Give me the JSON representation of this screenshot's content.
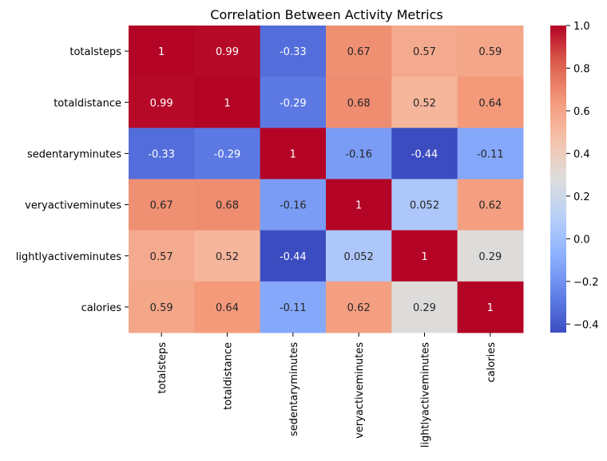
{
  "chart_data": {
    "type": "heatmap",
    "title": "Correlation Between Activity Metrics",
    "xlabel": "",
    "ylabel": "",
    "rows": [
      "totalsteps",
      "totaldistance",
      "sedentaryminutes",
      "veryactiveminutes",
      "lightlyactiveminutes",
      "calories"
    ],
    "columns": [
      "totalsteps",
      "totaldistance",
      "sedentaryminutes",
      "veryactiveminutes",
      "lightlyactiveminutes",
      "calories"
    ],
    "values": [
      [
        1,
        0.99,
        -0.33,
        0.67,
        0.57,
        0.59
      ],
      [
        0.99,
        1,
        -0.29,
        0.68,
        0.52,
        0.64
      ],
      [
        -0.33,
        -0.29,
        1,
        -0.16,
        -0.44,
        -0.11
      ],
      [
        0.67,
        0.68,
        -0.16,
        1,
        0.052,
        0.62
      ],
      [
        0.57,
        0.52,
        -0.44,
        0.052,
        1,
        0.29
      ],
      [
        0.59,
        0.64,
        -0.11,
        0.62,
        0.29,
        1
      ]
    ],
    "annotations": [
      [
        "1",
        "0.99",
        "-0.33",
        "0.67",
        "0.57",
        "0.59"
      ],
      [
        "0.99",
        "1",
        "-0.29",
        "0.68",
        "0.52",
        "0.64"
      ],
      [
        "-0.33",
        "-0.29",
        "1",
        "-0.16",
        "-0.44",
        "-0.11"
      ],
      [
        "0.67",
        "0.68",
        "-0.16",
        "1",
        "0.052",
        "0.62"
      ],
      [
        "0.57",
        "0.52",
        "-0.44",
        "0.052",
        "1",
        "0.29"
      ],
      [
        "0.59",
        "0.64",
        "-0.11",
        "0.62",
        "0.29",
        "1"
      ]
    ],
    "colormap": "coolwarm",
    "colorbar": {
      "vmin": -0.44,
      "vmax": 1.0,
      "ticks": [
        1.0,
        0.8,
        0.6,
        0.4,
        0.2,
        0.0,
        -0.2,
        -0.4
      ],
      "tick_labels": [
        "1.0",
        "0.8",
        "0.6",
        "0.4",
        "0.2",
        "0.0",
        "−0.2",
        "−0.4"
      ]
    },
    "grid": false,
    "legend": "colorbar-right"
  }
}
